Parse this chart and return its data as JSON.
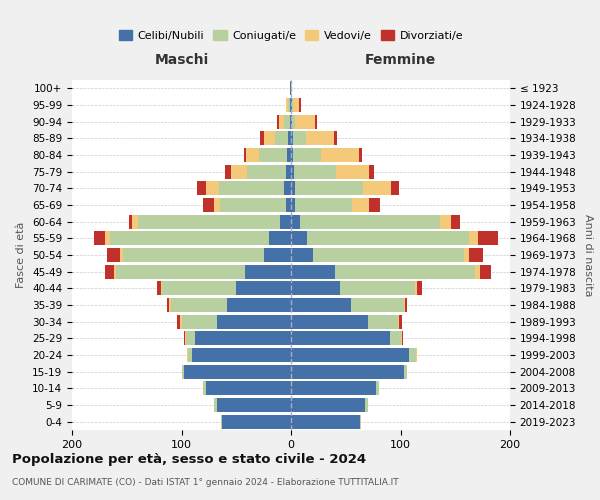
{
  "age_groups": [
    "0-4",
    "5-9",
    "10-14",
    "15-19",
    "20-24",
    "25-29",
    "30-34",
    "35-39",
    "40-44",
    "45-49",
    "50-54",
    "55-59",
    "60-64",
    "65-69",
    "70-74",
    "75-79",
    "80-84",
    "85-89",
    "90-94",
    "95-99",
    "100+"
  ],
  "birth_years": [
    "2019-2023",
    "2014-2018",
    "2009-2013",
    "2004-2008",
    "1999-2003",
    "1994-1998",
    "1989-1993",
    "1984-1988",
    "1979-1983",
    "1974-1978",
    "1969-1973",
    "1964-1968",
    "1959-1963",
    "1954-1958",
    "1949-1953",
    "1944-1948",
    "1939-1943",
    "1934-1938",
    "1929-1933",
    "1924-1928",
    "≤ 1923"
  ],
  "colors": {
    "celibi": "#4472a8",
    "coniugati": "#b8cfa0",
    "vedovi": "#f5c97a",
    "divorziati": "#c0312b",
    "bg": "#f0f0f0",
    "plot_bg": "#ffffff",
    "grid": "#cccccc"
  },
  "maschi": {
    "celibi": [
      63,
      68,
      78,
      98,
      90,
      88,
      68,
      58,
      50,
      42,
      25,
      20,
      10,
      5,
      6,
      5,
      4,
      3,
      1,
      1,
      1
    ],
    "coniugati": [
      1,
      2,
      2,
      2,
      4,
      8,
      32,
      52,
      68,
      118,
      128,
      145,
      130,
      60,
      60,
      35,
      25,
      12,
      5,
      2,
      0
    ],
    "vedovi": [
      0,
      0,
      0,
      0,
      1,
      1,
      1,
      1,
      1,
      2,
      3,
      5,
      5,
      5,
      12,
      15,
      12,
      10,
      5,
      2,
      0
    ],
    "divorziati": [
      0,
      0,
      0,
      0,
      0,
      1,
      3,
      2,
      3,
      8,
      12,
      10,
      3,
      10,
      8,
      5,
      2,
      3,
      2,
      0,
      0
    ]
  },
  "femmine": {
    "celibi": [
      63,
      68,
      78,
      103,
      108,
      90,
      70,
      55,
      45,
      40,
      20,
      15,
      8,
      4,
      4,
      3,
      2,
      2,
      1,
      1,
      0
    ],
    "coniugati": [
      1,
      2,
      2,
      3,
      6,
      10,
      28,
      48,
      68,
      128,
      138,
      148,
      128,
      52,
      62,
      38,
      25,
      12,
      3,
      1,
      0
    ],
    "vedovi": [
      0,
      0,
      0,
      0,
      1,
      1,
      1,
      1,
      2,
      5,
      5,
      8,
      10,
      15,
      25,
      30,
      35,
      25,
      18,
      5,
      1
    ],
    "divorziati": [
      0,
      0,
      0,
      0,
      0,
      1,
      2,
      2,
      5,
      10,
      12,
      18,
      8,
      10,
      8,
      5,
      3,
      3,
      2,
      2,
      0
    ]
  },
  "xlim": 200,
  "title": "Popolazione per età, sesso e stato civile - 2024",
  "subtitle": "COMUNE DI CARIMATE (CO) - Dati ISTAT 1° gennaio 2024 - Elaborazione TUTTITALIA.IT",
  "xlabel_maschi": "Maschi",
  "xlabel_femmine": "Femmine",
  "ylabel": "Fasce di età",
  "ylabel_right": "Anni di nascita",
  "legend_labels": [
    "Celibi/Nubili",
    "Coniugati/e",
    "Vedovi/e",
    "Divorziati/e"
  ]
}
